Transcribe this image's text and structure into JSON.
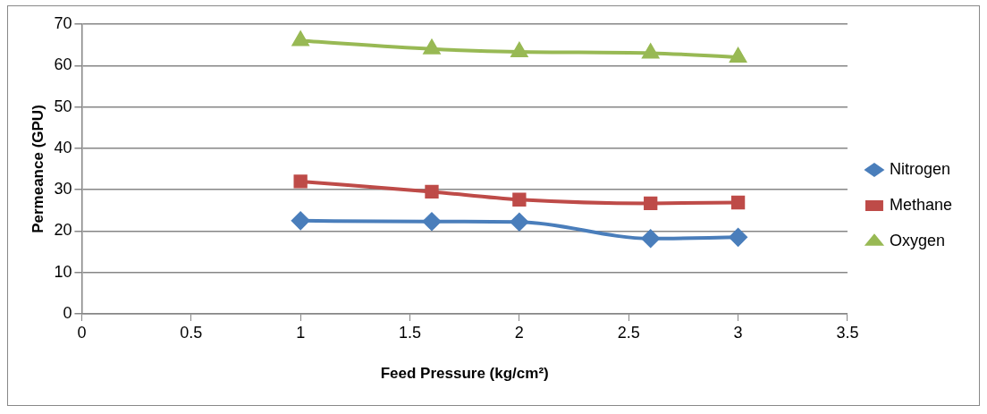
{
  "chart_data": {
    "type": "line",
    "xlabel": "Feed Pressure (kg/cm²)",
    "ylabel": "Permeance (GPU)",
    "x": [
      1,
      1.6,
      2,
      2.6,
      3
    ],
    "series": [
      {
        "name": "Nitrogen",
        "color": "#4a7ebb",
        "marker": "diamond",
        "values": [
          22.5,
          22.3,
          22.2,
          18.2,
          18.5
        ]
      },
      {
        "name": "Methane",
        "color": "#be4b48",
        "marker": "square",
        "values": [
          32,
          29.5,
          27.6,
          26.7,
          26.9
        ]
      },
      {
        "name": "Oxygen",
        "color": "#98b954",
        "marker": "triangle",
        "values": [
          66,
          64,
          63.3,
          63,
          62
        ]
      }
    ],
    "xlim": [
      0,
      3.5
    ],
    "xticks": [
      0,
      0.5,
      1,
      1.5,
      2,
      2.5,
      3,
      3.5
    ],
    "ylim": [
      0,
      70
    ],
    "yticks": [
      0,
      10,
      20,
      30,
      40,
      50,
      60,
      70
    ],
    "grid": "y",
    "legend": "right"
  }
}
